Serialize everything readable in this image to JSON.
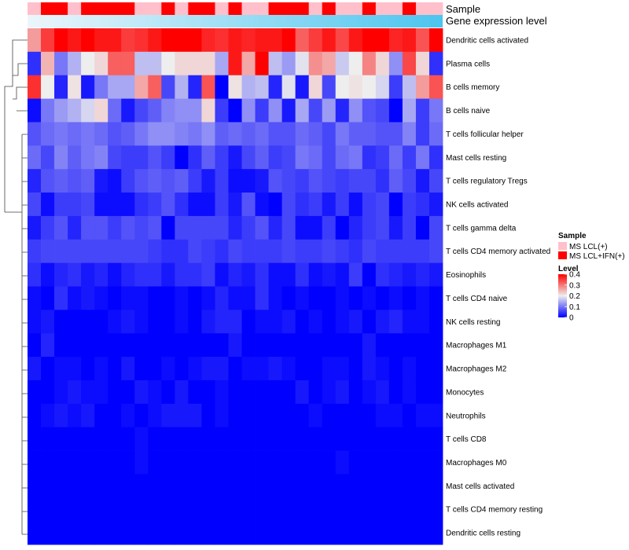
{
  "chart_data": {
    "type": "heatmap",
    "title": "",
    "annotation_tracks": [
      {
        "name": "Sample",
        "values": [
          "MS LCL(+)",
          "MS LCL+IFN(+)",
          "MS LCL+IFN(+)",
          "MS LCL(+)",
          "MS LCL+IFN(+)",
          "MS LCL+IFN(+)",
          "MS LCL+IFN(+)",
          "MS LCL+IFN(+)",
          "MS LCL(+)",
          "MS LCL(+)",
          "MS LCL+IFN(+)",
          "MS LCL(+)",
          "MS LCL+IFN(+)",
          "MS LCL+IFN(+)",
          "MS LCL(+)",
          "MS LCL+IFN(+)",
          "MS LCL(+)",
          "MS LCL(+)",
          "MS LCL+IFN(+)",
          "MS LCL+IFN(+)",
          "MS LCL+IFN(+)",
          "MS LCL(+)",
          "MS LCL+IFN(+)",
          "MS LCL(+)",
          "MS LCL(+)",
          "MS LCL+IFN(+)",
          "MS LCL(+)",
          "MS LCL(+)",
          "MS LCL+IFN(+)",
          "MS LCL(+)",
          "MS LCL(+)"
        ]
      },
      {
        "name": "Gene expression level",
        "type": "gradient",
        "from_color": "#ecf6fb",
        "to_color": "#4cc5ef"
      }
    ],
    "rows": [
      "Dendritic cells activated",
      "Plasma cells",
      "B cells memory",
      "B cells naive",
      "T cells follicular helper",
      "Mast cells resting",
      "T cells regulatory  Tregs",
      "NK cells activated",
      "T cells gamma delta",
      "T cells CD4 memory activated",
      "Eosinophils",
      "T cells CD4 naive",
      "NK cells resting",
      "Macrophages M1",
      "Macrophages M2",
      "Monocytes",
      "Neutrophils",
      "T cells CD8",
      "Macrophages M0",
      "Mast cells activated",
      "T cells CD4 memory resting",
      "Dendritic cells resting"
    ],
    "values": [
      [
        0.27,
        0.35,
        0.4,
        0.38,
        0.4,
        0.38,
        0.38,
        0.35,
        0.36,
        0.38,
        0.4,
        0.4,
        0.4,
        0.37,
        0.36,
        0.38,
        0.37,
        0.38,
        0.38,
        0.4,
        0.32,
        0.35,
        0.38,
        0.34,
        0.38,
        0.4,
        0.4,
        0.37,
        0.38,
        0.33,
        0.4
      ],
      [
        0.04,
        0.25,
        0.1,
        0.15,
        0.2,
        0.22,
        0.32,
        0.32,
        0.16,
        0.16,
        0.2,
        0.22,
        0.22,
        0.22,
        0.14,
        0.38,
        0.26,
        0.4,
        0.16,
        0.13,
        0.19,
        0.28,
        0.26,
        0.17,
        0.2,
        0.29,
        0.22,
        0.12,
        0.34,
        0.22,
        0.04
      ],
      [
        0.36,
        0.2,
        0.03,
        0.21,
        0.02,
        0.1,
        0.14,
        0.14,
        0.26,
        0.32,
        0.06,
        0.15,
        0.03,
        0.33,
        0.0,
        0.21,
        0.15,
        0.16,
        0.03,
        0.19,
        0.02,
        0.22,
        0.06,
        0.2,
        0.21,
        0.2,
        0.18,
        0.05,
        0.16,
        0.27,
        0.33
      ],
      [
        0.01,
        0.1,
        0.13,
        0.15,
        0.18,
        0.22,
        0.09,
        0.02,
        0.06,
        0.08,
        0.11,
        0.12,
        0.12,
        0.22,
        0.05,
        0.0,
        0.12,
        0.05,
        0.12,
        0.02,
        0.14,
        0.06,
        0.13,
        0.03,
        0.12,
        0.07,
        0.06,
        0.0,
        0.14,
        0.05,
        0.1
      ],
      [
        0.07,
        0.09,
        0.1,
        0.09,
        0.1,
        0.09,
        0.07,
        0.08,
        0.1,
        0.12,
        0.12,
        0.11,
        0.1,
        0.12,
        0.08,
        0.09,
        0.08,
        0.09,
        0.07,
        0.07,
        0.09,
        0.08,
        0.06,
        0.1,
        0.08,
        0.08,
        0.07,
        0.07,
        0.11,
        0.05,
        0.09
      ],
      [
        0.09,
        0.06,
        0.11,
        0.08,
        0.1,
        0.11,
        0.06,
        0.05,
        0.05,
        0.07,
        0.05,
        0.0,
        0.04,
        0.08,
        0.05,
        0.02,
        0.06,
        0.08,
        0.05,
        0.06,
        0.1,
        0.09,
        0.06,
        0.09,
        0.1,
        0.04,
        0.05,
        0.09,
        0.05,
        0.1,
        0.04
      ],
      [
        0.03,
        0.07,
        0.08,
        0.07,
        0.08,
        0.02,
        0.01,
        0.05,
        0.07,
        0.08,
        0.07,
        0.08,
        0.05,
        0.02,
        0.05,
        0.01,
        0.01,
        0.02,
        0.07,
        0.06,
        0.05,
        0.07,
        0.06,
        0.05,
        0.06,
        0.06,
        0.04,
        0.08,
        0.06,
        0.02,
        0.06
      ],
      [
        0.06,
        0.01,
        0.05,
        0.05,
        0.06,
        0.01,
        0.01,
        0.01,
        0.04,
        0.05,
        0.07,
        0.04,
        0.01,
        0.01,
        0.05,
        0.02,
        0.07,
        0.01,
        0.0,
        0.06,
        0.04,
        0.05,
        0.02,
        0.05,
        0.01,
        0.05,
        0.06,
        0.0,
        0.05,
        0.04,
        0.02
      ],
      [
        0.02,
        0.05,
        0.07,
        0.03,
        0.07,
        0.07,
        0.05,
        0.07,
        0.06,
        0.07,
        0.0,
        0.06,
        0.06,
        0.06,
        0.06,
        0.03,
        0.05,
        0.07,
        0.03,
        0.06,
        0.01,
        0.01,
        0.05,
        0.0,
        0.03,
        0.05,
        0.06,
        0.02,
        0.05,
        0.0,
        0.06
      ],
      [
        0.05,
        0.06,
        0.06,
        0.06,
        0.06,
        0.06,
        0.06,
        0.06,
        0.06,
        0.05,
        0.04,
        0.04,
        0.06,
        0.05,
        0.04,
        0.06,
        0.05,
        0.05,
        0.05,
        0.06,
        0.05,
        0.05,
        0.06,
        0.05,
        0.04,
        0.06,
        0.05,
        0.05,
        0.05,
        0.05,
        0.06
      ],
      [
        0.04,
        0.01,
        0.03,
        0.04,
        0.02,
        0.03,
        0.01,
        0.03,
        0.04,
        0.04,
        0.02,
        0.04,
        0.04,
        0.05,
        0.01,
        0.03,
        0.02,
        0.04,
        0.01,
        0.01,
        0.04,
        0.01,
        0.02,
        0.01,
        0.05,
        0.0,
        0.04,
        0.03,
        0.02,
        0.03,
        0.02
      ],
      [
        0.01,
        0.0,
        0.04,
        0.01,
        0.02,
        0.01,
        0.0,
        0.01,
        0.01,
        0.0,
        0.0,
        0.01,
        0.0,
        0.01,
        0.03,
        0.01,
        0.01,
        0.04,
        0.01,
        0.0,
        0.01,
        0.0,
        0.0,
        0.01,
        0.0,
        0.01,
        0.0,
        0.01,
        0.0,
        0.01,
        0.0
      ],
      [
        0.01,
        0.02,
        0.0,
        0.0,
        0.0,
        0.0,
        0.01,
        0.02,
        0.01,
        0.0,
        0.0,
        0.01,
        0.0,
        0.02,
        0.03,
        0.03,
        0.0,
        0.01,
        0.01,
        0.02,
        0.0,
        0.01,
        0.0,
        0.01,
        0.02,
        0.0,
        0.02,
        0.03,
        0.01,
        0.01,
        0.0
      ],
      [
        0.0,
        0.03,
        0.0,
        0.0,
        0.0,
        0.0,
        0.0,
        0.0,
        0.0,
        0.0,
        0.0,
        0.0,
        0.0,
        0.0,
        0.0,
        0.02,
        0.0,
        0.0,
        0.0,
        0.0,
        0.0,
        0.0,
        0.0,
        0.0,
        0.0,
        0.02,
        0.0,
        0.0,
        0.0,
        0.0,
        0.0
      ],
      [
        0.02,
        0.0,
        0.01,
        0.01,
        0.0,
        0.01,
        0.0,
        0.02,
        0.0,
        0.0,
        0.01,
        0.0,
        0.01,
        0.02,
        0.02,
        0.0,
        0.01,
        0.01,
        0.02,
        0.01,
        0.0,
        0.0,
        0.01,
        0.01,
        0.0,
        0.02,
        0.01,
        0.0,
        0.01,
        0.0,
        0.0
      ],
      [
        0.0,
        0.0,
        0.01,
        0.02,
        0.01,
        0.01,
        0.0,
        0.0,
        0.02,
        0.01,
        0.0,
        0.02,
        0.0,
        0.0,
        0.01,
        0.0,
        0.0,
        0.0,
        0.0,
        0.0,
        0.02,
        0.0,
        0.01,
        0.02,
        0.0,
        0.01,
        0.02,
        0.0,
        0.01,
        0.0,
        0.0
      ],
      [
        0.0,
        0.01,
        0.02,
        0.01,
        0.02,
        0.0,
        0.0,
        0.01,
        0.0,
        0.01,
        0.02,
        0.02,
        0.02,
        0.0,
        0.01,
        0.0,
        0.0,
        0.0,
        0.0,
        0.0,
        0.0,
        0.01,
        0.0,
        0.0,
        0.0,
        0.0,
        0.01,
        0.01,
        0.0,
        0.01,
        0.01
      ],
      [
        0.0,
        0.0,
        0.0,
        0.0,
        0.0,
        0.0,
        0.0,
        0.0,
        0.01,
        0.0,
        0.0,
        0.0,
        0.0,
        0.0,
        0.0,
        0.0,
        0.0,
        0.0,
        0.0,
        0.0,
        0.0,
        0.0,
        0.0,
        0.0,
        0.0,
        0.0,
        0.0,
        0.0,
        0.0,
        0.0,
        0.0
      ],
      [
        0.0,
        0.0,
        0.0,
        0.0,
        0.0,
        0.0,
        0.0,
        0.0,
        0.01,
        0.0,
        0.0,
        0.0,
        0.0,
        0.0,
        0.0,
        0.0,
        0.0,
        0.0,
        0.0,
        0.0,
        0.0,
        0.0,
        0.0,
        0.01,
        0.0,
        0.0,
        0.0,
        0.0,
        0.0,
        0.0,
        0.0
      ],
      [
        0.0,
        0.0,
        0.0,
        0.0,
        0.0,
        0.0,
        0.0,
        0.0,
        0.0,
        0.0,
        0.0,
        0.0,
        0.0,
        0.0,
        0.0,
        0.0,
        0.0,
        0.0,
        0.0,
        0.0,
        0.0,
        0.0,
        0.0,
        0.0,
        0.0,
        0.0,
        0.0,
        0.0,
        0.0,
        0.0,
        0.0
      ],
      [
        0.0,
        0.0,
        0.0,
        0.0,
        0.0,
        0.0,
        0.0,
        0.0,
        0.0,
        0.0,
        0.0,
        0.0,
        0.0,
        0.0,
        0.0,
        0.0,
        0.0,
        0.0,
        0.0,
        0.0,
        0.0,
        0.0,
        0.0,
        0.0,
        0.0,
        0.0,
        0.0,
        0.0,
        0.0,
        0.0,
        0.0
      ],
      [
        0.0,
        0.0,
        0.0,
        0.0,
        0.0,
        0.0,
        0.0,
        0.0,
        0.0,
        0.0,
        0.0,
        0.0,
        0.0,
        0.0,
        0.0,
        0.0,
        0.0,
        0.0,
        0.0,
        0.0,
        0.0,
        0.0,
        0.0,
        0.0,
        0.0,
        0.0,
        0.0,
        0.0,
        0.0,
        0.0,
        0.0
      ]
    ],
    "color_scale": {
      "name": "Level",
      "min": 0,
      "max": 0.4,
      "stops": [
        {
          "value": 0,
          "color": "#0000ff"
        },
        {
          "value": 0.2,
          "color": "#eeeeee"
        },
        {
          "value": 0.4,
          "color": "#ff0000"
        }
      ],
      "ticks": [
        "0.4",
        "0.3",
        "0.2",
        "0.1",
        "0"
      ]
    },
    "legend": {
      "sample_title": "Sample",
      "sample_entries": [
        {
          "label": "MS LCL(+)",
          "color": "#ffc0cb"
        },
        {
          "label": "MS LCL+IFN(+)",
          "color": "#ff0000"
        }
      ],
      "placement": "right"
    },
    "row_dendrogram": true
  }
}
